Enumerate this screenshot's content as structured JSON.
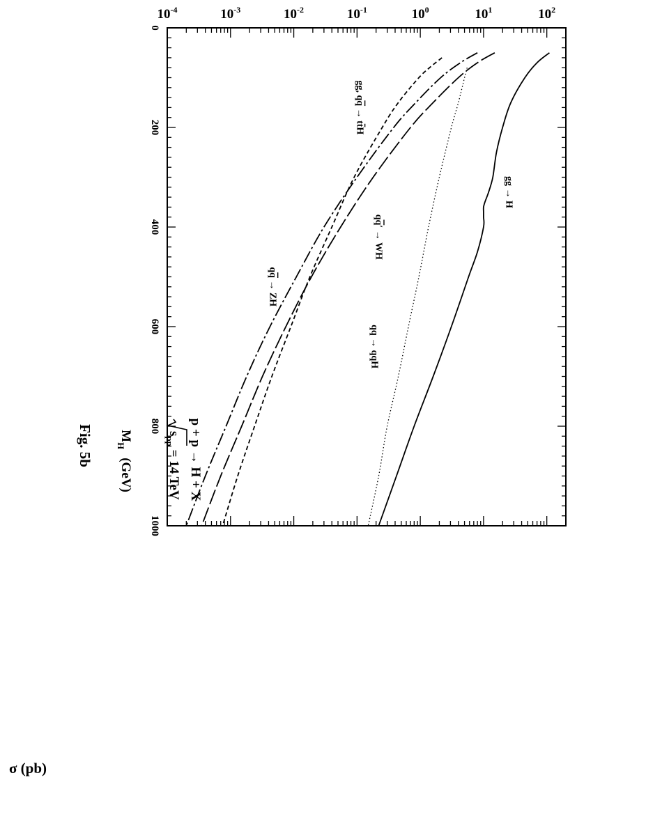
{
  "figure": {
    "caption": "Fig. 5b",
    "process_label": "p + p → H + X",
    "energy_label_prefix": "s",
    "energy_label_sub": "pp",
    "energy_label_suffix": " = 14 TeV"
  },
  "chart_data": {
    "type": "line",
    "title": "",
    "xlabel": "M",
    "xlabel_sub": "H",
    "xlabel_unit": "(GeV)",
    "ylabel": "σ  (pb)",
    "xlim": [
      0,
      1000
    ],
    "ylim": [
      0.0001,
      200
    ],
    "yscale": "log",
    "grid": false,
    "legend": "none",
    "x_ticks": [
      {
        "value": 0,
        "label": "0"
      },
      {
        "value": 200,
        "label": "200"
      },
      {
        "value": 400,
        "label": "400"
      },
      {
        "value": 600,
        "label": "600"
      },
      {
        "value": 800,
        "label": "800"
      },
      {
        "value": 1000,
        "label": "1000"
      }
    ],
    "y_ticks": [
      {
        "exp": 2,
        "base": "10",
        "sup": "2"
      },
      {
        "exp": 1,
        "base": "10",
        "sup": "1"
      },
      {
        "exp": 0,
        "base": "10",
        "sup": "0"
      },
      {
        "exp": -1,
        "base": "10",
        "sup": "-1"
      },
      {
        "exp": -2,
        "base": "10",
        "sup": "-2"
      },
      {
        "exp": -3,
        "base": "10",
        "sup": "-3"
      },
      {
        "exp": -4,
        "base": "10",
        "sup": "-4"
      }
    ],
    "series": [
      {
        "key": "ggH",
        "style": "solid",
        "x": [
          50,
          70,
          100,
          150,
          200,
          250,
          300,
          330,
          350,
          360,
          370,
          380,
          400,
          450,
          500,
          600,
          700,
          800,
          900,
          1000
        ],
        "y": [
          110,
          70,
          45,
          27,
          20,
          16,
          14,
          12,
          10.5,
          10,
          10,
          10,
          10,
          8,
          5.8,
          3.1,
          1.6,
          0.8,
          0.42,
          0.22
        ]
      },
      {
        "key": "qqH",
        "style": "dotted",
        "x": [
          80,
          100,
          150,
          200,
          300,
          400,
          500,
          600,
          700,
          800,
          900,
          1000
        ],
        "y": [
          5.5,
          5.0,
          4.0,
          3.1,
          2.0,
          1.35,
          0.95,
          0.65,
          0.45,
          0.3,
          0.22,
          0.15
        ]
      },
      {
        "key": "WH",
        "style": "longdash",
        "x": [
          50,
          70,
          100,
          150,
          200,
          300,
          400,
          500,
          600,
          700,
          800,
          900,
          1000
        ],
        "y": [
          15,
          8,
          4.0,
          1.6,
          0.7,
          0.18,
          0.055,
          0.019,
          0.0075,
          0.0032,
          0.0015,
          0.0007,
          0.00035
        ]
      },
      {
        "key": "ZH",
        "style": "dashdot",
        "x": [
          50,
          70,
          100,
          150,
          200,
          300,
          400,
          500,
          600,
          700,
          800,
          900,
          1000
        ],
        "y": [
          8,
          4.3,
          2.1,
          0.85,
          0.38,
          0.1,
          0.03,
          0.011,
          0.0042,
          0.0018,
          0.00085,
          0.0004,
          0.0002
        ]
      },
      {
        "key": "ttH",
        "style": "shortdash",
        "x": [
          60,
          80,
          100,
          150,
          200,
          300,
          400,
          500,
          600,
          700,
          800,
          900,
          1000
        ],
        "y": [
          2.2,
          1.4,
          0.95,
          0.45,
          0.25,
          0.09,
          0.04,
          0.018,
          0.009,
          0.0045,
          0.0024,
          0.0013,
          0.00075
        ]
      }
    ],
    "annotations": [
      {
        "key": "ann_ggH",
        "segments": [
          "gg",
          " → H"
        ],
        "at_x": 330,
        "at_y": 23
      },
      {
        "key": "ann_qqH",
        "segments": [
          "qq → qqH"
        ],
        "at_x": 640,
        "at_y": 0.17
      },
      {
        "key": "ann_WH",
        "segments": [
          "q",
          "q",
          "′ → WH"
        ],
        "at_x": 420,
        "at_y": 0.2
      },
      {
        "key": "ann_ZH",
        "segments": [
          "q",
          "q",
          " → ZH"
        ],
        "at_x": 520,
        "at_y": 0.0042
      },
      {
        "key": "ann_ttH",
        "segments": [
          "gg, q",
          "q",
          " → t",
          "t",
          "H"
        ],
        "at_x": 160,
        "at_y": 0.1
      }
    ]
  }
}
